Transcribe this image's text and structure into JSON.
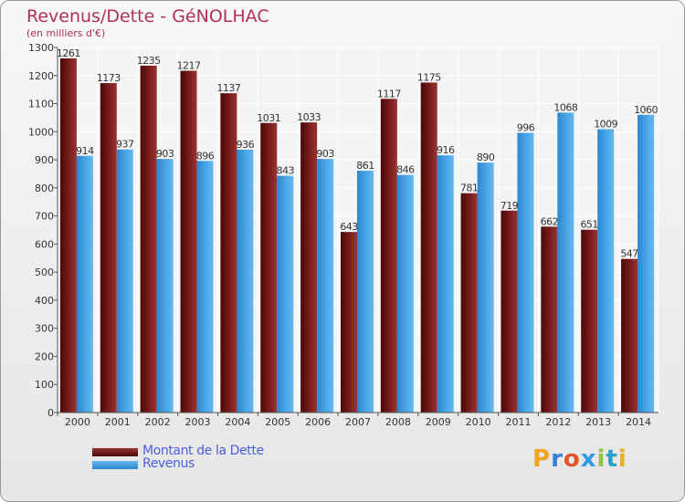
{
  "title": "Revenus/Dette - GéNOLHAC",
  "subtitle": "(en milliers d'€)",
  "brand": {
    "text": "Proxiti",
    "letter_colors": [
      "#f2a51c",
      "#3b7fd9",
      "#e0552d",
      "#2d9be6",
      "#8cc63f",
      "#2aa0c8",
      "#e8b020"
    ]
  },
  "legend": [
    {
      "label": "Montant de la Dette",
      "color": "#7a1a1a"
    },
    {
      "label": "Revenus",
      "color": "#3f9ee0"
    }
  ],
  "chart_data": {
    "type": "bar",
    "title": "Revenus/Dette - GéNOLHAC",
    "ylabel": "(en milliers d'€)",
    "xlabel": "",
    "categories": [
      "2000",
      "2001",
      "2002",
      "2003",
      "2004",
      "2005",
      "2006",
      "2007",
      "2008",
      "2009",
      "2010",
      "2011",
      "2012",
      "2013",
      "2014"
    ],
    "series": [
      {
        "name": "Montant de la Dette",
        "color": "#7a1a1a",
        "values": [
          1261,
          1173,
          1235,
          1217,
          1137,
          1031,
          1033,
          643,
          1117,
          1175,
          781,
          719,
          662,
          651,
          547
        ]
      },
      {
        "name": "Revenus",
        "color": "#3f9ee0",
        "values": [
          914,
          937,
          903,
          896,
          936,
          843,
          903,
          861,
          846,
          916,
          890,
          996,
          1068,
          1009,
          1060
        ]
      }
    ],
    "ylim": [
      0,
      1300
    ],
    "yticks": [
      0,
      100,
      200,
      300,
      400,
      500,
      600,
      700,
      800,
      900,
      1000,
      1100,
      1200,
      1300
    ],
    "grid": true
  }
}
